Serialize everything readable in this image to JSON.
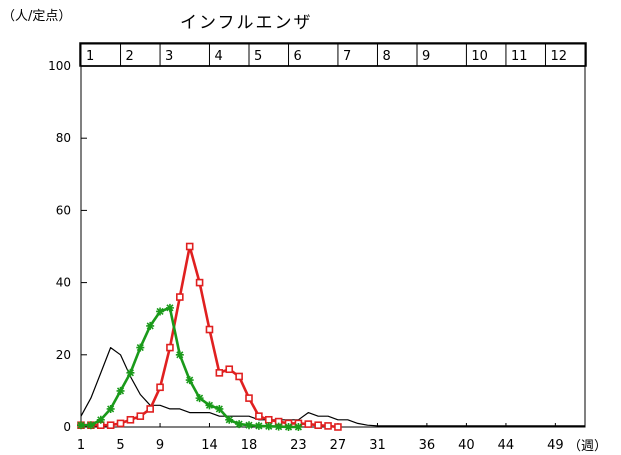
{
  "chart_data": {
    "type": "line",
    "title": "インフルエンザ",
    "ylabel": "（人/定点）",
    "xlabel": "（週）",
    "ylim": [
      0,
      100
    ],
    "xlim": [
      1,
      52
    ],
    "yticks": [
      0,
      20,
      40,
      60,
      80,
      100
    ],
    "xticks": [
      1,
      5,
      9,
      14,
      18,
      23,
      27,
      31,
      36,
      40,
      44,
      49
    ],
    "months": [
      {
        "label": "1",
        "start": 1,
        "end": 5
      },
      {
        "label": "2",
        "start": 5,
        "end": 9
      },
      {
        "label": "3",
        "start": 9,
        "end": 14
      },
      {
        "label": "4",
        "start": 14,
        "end": 18
      },
      {
        "label": "5",
        "start": 18,
        "end": 22
      },
      {
        "label": "6",
        "start": 22,
        "end": 27
      },
      {
        "label": "7",
        "start": 27,
        "end": 31
      },
      {
        "label": "8",
        "start": 31,
        "end": 35
      },
      {
        "label": "9",
        "start": 35,
        "end": 40
      },
      {
        "label": "10",
        "start": 40,
        "end": 44
      },
      {
        "label": "11",
        "start": 44,
        "end": 48
      },
      {
        "label": "12",
        "start": 48,
        "end": 52
      }
    ],
    "series": [
      {
        "color": "#000000",
        "marker": "none",
        "x": [
          1,
          2,
          3,
          4,
          5,
          6,
          7,
          8,
          9,
          10,
          11,
          12,
          13,
          14,
          15,
          16,
          17,
          18,
          19,
          20,
          21,
          22,
          23,
          24,
          25,
          26,
          27,
          28,
          29,
          30,
          31,
          32,
          33,
          34,
          35,
          36,
          37,
          38,
          39,
          40,
          41,
          42,
          43,
          44,
          45,
          46,
          47,
          48,
          49,
          50,
          51,
          52
        ],
        "y": [
          3,
          8,
          15,
          22,
          20,
          14,
          9,
          6,
          6,
          5,
          5,
          4,
          4,
          4,
          3,
          3,
          3,
          3,
          2,
          2,
          2,
          2,
          2,
          4,
          3,
          3,
          2,
          2,
          1,
          0.5,
          0.3,
          0.3,
          0.3,
          0.3,
          0.3,
          0.3,
          0.3,
          0.3,
          0.3,
          0.3,
          0.3,
          0.3,
          0.3,
          0.3,
          0.3,
          0.3,
          0.3,
          0.3,
          0.3,
          0.3,
          0.3,
          0.3
        ]
      },
      {
        "color": "#e02020",
        "marker": "square",
        "x": [
          1,
          2,
          3,
          4,
          5,
          6,
          7,
          8,
          9,
          10,
          11,
          12,
          13,
          14,
          15,
          16,
          17,
          18,
          19,
          20,
          21,
          22,
          23,
          24,
          25,
          26,
          27
        ],
        "y": [
          0.5,
          0.5,
          0.5,
          0.5,
          1,
          2,
          3,
          5,
          11,
          22,
          36,
          50,
          40,
          27,
          15,
          16,
          14,
          8,
          3,
          2,
          1.5,
          1,
          1,
          0.8,
          0.5,
          0.3,
          0
        ]
      },
      {
        "color": "#1a9a1a",
        "marker": "star",
        "x": [
          1,
          2,
          3,
          4,
          5,
          6,
          7,
          8,
          9,
          10,
          11,
          12,
          13,
          14,
          15,
          16,
          17,
          18,
          19,
          20,
          21,
          22,
          23
        ],
        "y": [
          0.5,
          0.5,
          2,
          5,
          10,
          15,
          22,
          28,
          32,
          33,
          20,
          13,
          8,
          6,
          5,
          2,
          0.8,
          0.5,
          0.3,
          0.2,
          0.1,
          0,
          0
        ]
      }
    ]
  }
}
